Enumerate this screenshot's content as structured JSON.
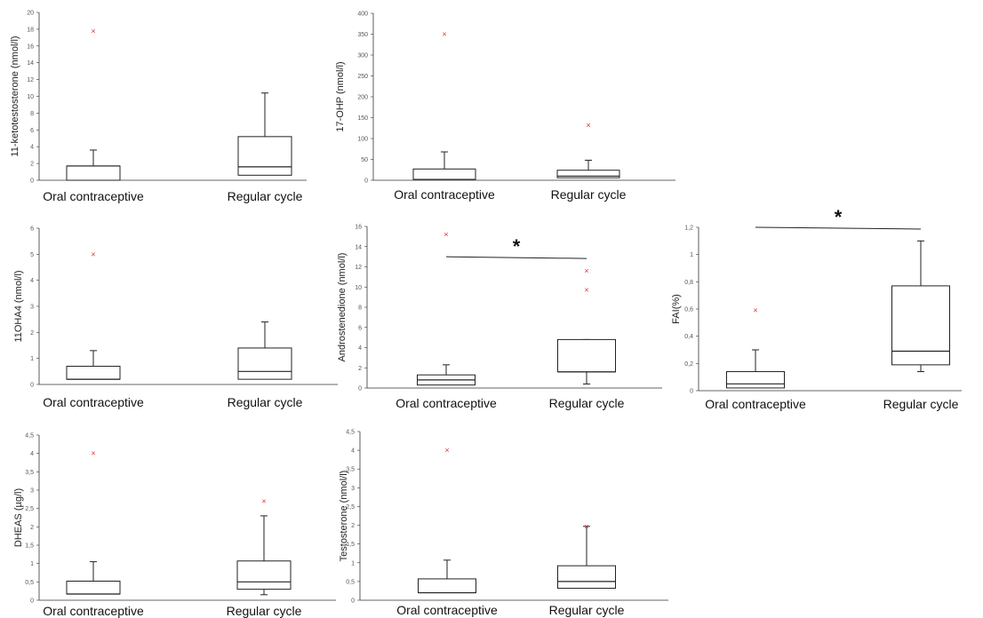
{
  "colors": {
    "outlier": "#e03030",
    "box": "#222222",
    "axis": "#333333"
  },
  "chart_data": [
    {
      "type": "box",
      "ylabel": "11-ketotestosterone (nmol/l)",
      "ylim": [
        0,
        20
      ],
      "yticks": [
        0,
        2,
        4,
        6,
        8,
        10,
        12,
        14,
        16,
        18,
        20
      ],
      "tick_labels": [
        "0",
        "2",
        "4",
        "6",
        "8",
        "10",
        "12",
        "14",
        "16",
        "18",
        "20"
      ],
      "categories": [
        "Oral contraceptive",
        "Regular cycle"
      ],
      "boxes": [
        {
          "q1": 0,
          "median": 1.7,
          "q3": 1.7,
          "lower": 0,
          "upper": 3.6,
          "outliers": [
            17.8
          ]
        },
        {
          "q1": 0.6,
          "median": 1.6,
          "q3": 5.2,
          "lower": 0.6,
          "upper": 10.4,
          "outliers": []
        }
      ],
      "significance": null
    },
    {
      "type": "box",
      "ylabel": "17-OHP (nmol/l)",
      "ylim": [
        0,
        400
      ],
      "yticks": [
        0,
        50,
        100,
        150,
        200,
        250,
        300,
        350,
        400
      ],
      "tick_labels": [
        "0",
        "50",
        "100",
        "150",
        "200",
        "250",
        "300",
        "350",
        "400"
      ],
      "categories": [
        "Oral contraceptive",
        "Regular cycle"
      ],
      "boxes": [
        {
          "q1": 2,
          "median": 2,
          "q3": 27,
          "lower": 2,
          "upper": 68,
          "outliers": [
            350
          ]
        },
        {
          "q1": 6,
          "median": 10,
          "q3": 24,
          "lower": 6,
          "upper": 48,
          "outliers": [
            132
          ]
        }
      ],
      "significance": null
    },
    {
      "type": "box",
      "ylabel": "11OHA4 (nmol/l)",
      "ylim": [
        0,
        6
      ],
      "yticks": [
        0,
        1,
        2,
        3,
        4,
        5,
        6
      ],
      "tick_labels": [
        "0",
        "1",
        "2",
        "3",
        "4",
        "5",
        "6"
      ],
      "categories": [
        "Oral contraceptive",
        "Regular cycle"
      ],
      "boxes": [
        {
          "q1": 0.2,
          "median": 0.2,
          "q3": 0.7,
          "lower": 0.2,
          "upper": 1.3,
          "outliers": [
            5
          ]
        },
        {
          "q1": 0.2,
          "median": 0.5,
          "q3": 1.4,
          "lower": 0.2,
          "upper": 2.4,
          "outliers": []
        }
      ],
      "significance": null
    },
    {
      "type": "box",
      "ylabel": "Androstenedione (nmol/l)",
      "ylim": [
        0,
        16
      ],
      "yticks": [
        0,
        2,
        4,
        6,
        8,
        10,
        12,
        14,
        16
      ],
      "tick_labels": [
        "0",
        "2",
        "4",
        "6",
        "8",
        "10",
        "12",
        "14",
        "16"
      ],
      "categories": [
        "Oral contraceptive",
        "Regular cycle"
      ],
      "boxes": [
        {
          "q1": 0.3,
          "median": 0.8,
          "q3": 1.3,
          "lower": 0.3,
          "upper": 2.3,
          "outliers": [
            15.2
          ]
        },
        {
          "q1": 1.6,
          "median": 1.6,
          "q3": 4.8,
          "lower": 0.4,
          "upper": 4.8,
          "outliers": [
            9.7,
            11.6
          ]
        }
      ],
      "significance": {
        "label": "*",
        "y": 13
      }
    },
    {
      "type": "box",
      "ylabel": "FAI(%)",
      "ylim": [
        0,
        1.2
      ],
      "yticks": [
        0,
        0.2,
        0.4,
        0.6,
        0.8,
        1,
        1.2
      ],
      "tick_labels": [
        "0",
        "0,2",
        "0,4",
        "0,6",
        "0,8",
        "1",
        "1,2"
      ],
      "categories": [
        "Oral contraceptive",
        "Regular cycle"
      ],
      "boxes": [
        {
          "q1": 0.02,
          "median": 0.05,
          "q3": 0.14,
          "lower": 0.02,
          "upper": 0.3,
          "outliers": [
            0.59
          ]
        },
        {
          "q1": 0.19,
          "median": 0.29,
          "q3": 0.77,
          "lower": 0.14,
          "upper": 1.1,
          "outliers": []
        }
      ],
      "significance": {
        "label": "*",
        "y": 1.2
      }
    },
    {
      "type": "box",
      "ylabel": "DHEAS (µg/l)",
      "ylim": [
        0,
        4.5
      ],
      "yticks": [
        0,
        0.5,
        1,
        1.5,
        2,
        2.5,
        3,
        3.5,
        4,
        4.5
      ],
      "tick_labels": [
        "0",
        "0,5",
        "1",
        "1,5",
        "2",
        "2,5",
        "3",
        "3,5",
        "4",
        "4,5"
      ],
      "categories": [
        "Oral contraceptive",
        "Regular cycle"
      ],
      "boxes": [
        {
          "q1": 0.17,
          "median": 0.17,
          "q3": 0.52,
          "lower": 0.17,
          "upper": 1.05,
          "outliers": [
            4
          ]
        },
        {
          "q1": 0.3,
          "median": 0.5,
          "q3": 1.07,
          "lower": 0.15,
          "upper": 2.3,
          "outliers": [
            2.7
          ]
        }
      ],
      "significance": null
    },
    {
      "type": "box",
      "ylabel": "Testosterone (nmol/l)",
      "ylim": [
        0,
        4.5
      ],
      "yticks": [
        0,
        0.5,
        1,
        1.5,
        2,
        2.5,
        3,
        3.5,
        4,
        4.5
      ],
      "tick_labels": [
        "0",
        "0,5",
        "1",
        "1,5",
        "2",
        "2,5",
        "3",
        "3,5",
        "4",
        "4,5"
      ],
      "categories": [
        "Oral contraceptive",
        "Regular cycle"
      ],
      "boxes": [
        {
          "q1": 0.2,
          "median": 0.2,
          "q3": 0.57,
          "lower": 0.2,
          "upper": 1.07,
          "outliers": [
            4
          ]
        },
        {
          "q1": 0.32,
          "median": 0.5,
          "q3": 0.92,
          "lower": 0.32,
          "upper": 1.97,
          "outliers": [
            1.97
          ]
        }
      ],
      "significance": null
    }
  ]
}
